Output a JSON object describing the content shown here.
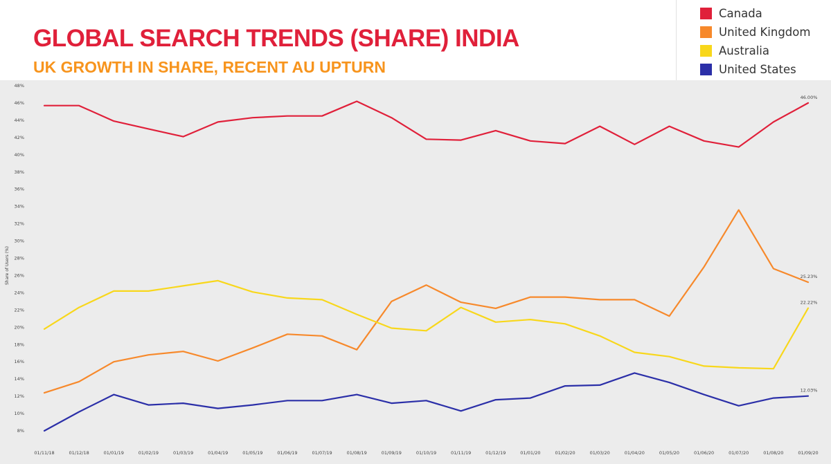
{
  "header": {
    "title": "GLOBAL SEARCH TRENDS (SHARE) INDIA",
    "subtitle": "UK GROWTH IN SHARE, RECENT AU UPTURN"
  },
  "colors": {
    "title": "#e0203a",
    "subtitle": "#f7941d",
    "plot_background": "#ececec"
  },
  "chart_data": {
    "type": "line",
    "title": "GLOBAL SEARCH TRENDS (SHARE) INDIA",
    "subtitle": "UK GROWTH IN SHARE, RECENT AU UPTURN",
    "ylabel": "Share of Users (%)",
    "xlabel": "",
    "ylim": [
      7,
      48
    ],
    "y_ticks": [
      "8%",
      "10%",
      "12%",
      "14%",
      "16%",
      "18%",
      "20%",
      "22%",
      "24%",
      "26%",
      "28%",
      "30%",
      "32%",
      "34%",
      "36%",
      "38%",
      "40%",
      "42%",
      "44%",
      "46%",
      "48%"
    ],
    "y_tick_values": [
      8,
      10,
      12,
      14,
      16,
      18,
      20,
      22,
      24,
      26,
      28,
      30,
      32,
      34,
      36,
      38,
      40,
      42,
      44,
      46,
      48
    ],
    "categories": [
      "01/11/18",
      "01/12/18",
      "01/01/19",
      "01/02/19",
      "01/03/19",
      "01/04/19",
      "01/05/19",
      "01/06/19",
      "01/07/19",
      "01/08/19",
      "01/09/19",
      "01/10/19",
      "01/11/19",
      "01/12/19",
      "01/01/20",
      "01/02/20",
      "01/03/20",
      "01/04/20",
      "01/05/20",
      "01/06/20",
      "01/07/20",
      "01/08/20",
      "01/09/20"
    ],
    "grid": false,
    "legend_position": "top-right",
    "series": [
      {
        "name": "Canada",
        "color": "#e0203a",
        "values": [
          45.7,
          45.7,
          43.9,
          43.0,
          42.1,
          43.8,
          44.3,
          44.5,
          44.5,
          46.2,
          44.3,
          41.8,
          41.7,
          42.8,
          41.6,
          41.3,
          43.3,
          41.2,
          43.3,
          41.6,
          40.9,
          43.8,
          46.0
        ],
        "end_label": "46.00%"
      },
      {
        "name": "United Kingdom",
        "color": "#f7892b",
        "values": [
          12.4,
          13.7,
          16.0,
          16.8,
          17.2,
          16.1,
          17.6,
          19.2,
          19.0,
          17.4,
          23.0,
          24.9,
          22.9,
          22.2,
          23.5,
          23.5,
          23.2,
          23.2,
          21.3,
          27.0,
          33.6,
          26.8,
          25.23
        ],
        "end_label": "25.23%"
      },
      {
        "name": "Australia",
        "color": "#f8d71b",
        "values": [
          19.8,
          22.3,
          24.2,
          24.2,
          24.8,
          25.4,
          24.1,
          23.4,
          23.2,
          21.5,
          19.9,
          19.6,
          22.3,
          20.6,
          20.9,
          20.4,
          19.0,
          17.1,
          16.6,
          15.5,
          15.3,
          15.2,
          22.22
        ],
        "end_label": "22.22%"
      },
      {
        "name": "United States",
        "color": "#2b2fa8",
        "values": [
          8.0,
          10.2,
          12.2,
          11.0,
          11.2,
          10.6,
          11.0,
          11.5,
          11.5,
          12.2,
          11.2,
          11.5,
          10.3,
          11.6,
          11.8,
          13.2,
          13.3,
          14.7,
          13.6,
          12.2,
          10.9,
          11.8,
          12.03
        ],
        "end_label": "12.03%"
      }
    ]
  }
}
